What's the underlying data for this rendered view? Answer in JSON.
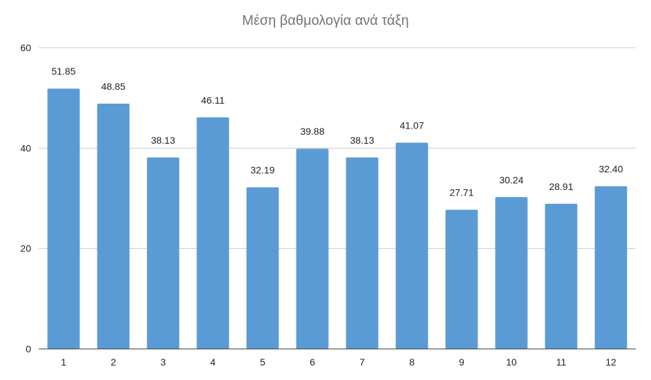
{
  "chart_data": {
    "type": "bar",
    "title": "Μέση βαθμολογία ανά τάξη",
    "xlabel": "",
    "ylabel": "",
    "categories": [
      "1",
      "2",
      "3",
      "4",
      "5",
      "6",
      "7",
      "8",
      "9",
      "10",
      "11",
      "12"
    ],
    "values": [
      51.85,
      48.85,
      38.13,
      46.11,
      32.19,
      39.88,
      38.13,
      41.07,
      27.71,
      30.24,
      28.91,
      32.4
    ],
    "value_labels": [
      "51.85",
      "48.85",
      "38.13",
      "46.11",
      "32.19",
      "39.88",
      "38.13",
      "41.07",
      "27.71",
      "30.24",
      "28.91",
      "32.40"
    ],
    "ylim": [
      0,
      60
    ],
    "y_ticks": [
      "0",
      "20",
      "40",
      "60"
    ],
    "grid": true,
    "legend": "none",
    "colors": {
      "bar": "#5B9BD5",
      "title": "#757575",
      "label": "#222222",
      "tick": "#222222",
      "grid": "#cccccc",
      "axis": "#333333"
    }
  }
}
